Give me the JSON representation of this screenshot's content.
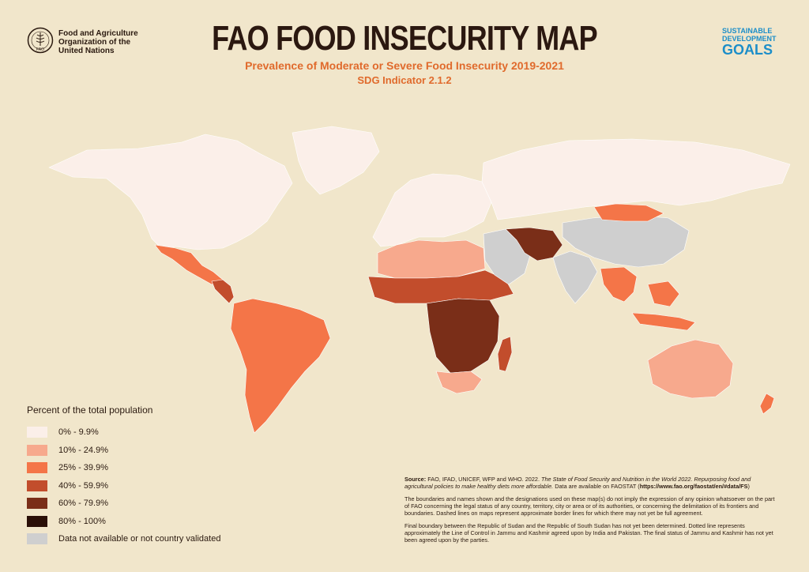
{
  "header": {
    "org_name_line1": "Food and Agriculture",
    "org_name_line2": "Organization of the",
    "org_name_line3": "United Nations",
    "logo_text": "FAO",
    "title": "FAO FOOD INSECURITY MAP",
    "subtitle": "Prevalence of Moderate or Severe Food Insecurity 2019-2021",
    "indicator": "SDG Indicator 2.1.2",
    "sdg_line1": "SUSTAINABLE",
    "sdg_line2": "DEVELOPMENT",
    "sdg_line3": "GOALS"
  },
  "legend": {
    "title": "Percent of the total population",
    "items": [
      {
        "label": "0% -  9.9%",
        "color": "#fbefe9"
      },
      {
        "label": "10% - 24.9%",
        "color": "#f7a98d"
      },
      {
        "label": "25% - 39.9%",
        "color": "#f47548"
      },
      {
        "label": "40% - 59.9%",
        "color": "#c24d2c"
      },
      {
        "label": "60% - 79.9%",
        "color": "#7a2e18"
      },
      {
        "label": "80% - 100%",
        "color": "#2a0f07"
      },
      {
        "label": "Data not available or not country validated",
        "color": "#cfcfcf"
      }
    ]
  },
  "map_regions": [
    {
      "name": "North America",
      "color": "#fbefe9"
    },
    {
      "name": "Greenland",
      "color": "#fbefe9"
    },
    {
      "name": "Mexico",
      "color": "#f47548"
    },
    {
      "name": "Central America",
      "color": "#c24d2c"
    },
    {
      "name": "South America",
      "color": "#f47548"
    },
    {
      "name": "Europe",
      "color": "#fbefe9"
    },
    {
      "name": "Russia",
      "color": "#fbefe9"
    },
    {
      "name": "North Africa",
      "color": "#f7a98d"
    },
    {
      "name": "Sahel",
      "color": "#c24d2c"
    },
    {
      "name": "Central Africa",
      "color": "#7a2e18"
    },
    {
      "name": "Southern Africa",
      "color": "#f7a98d"
    },
    {
      "name": "Madagascar",
      "color": "#c24d2c"
    },
    {
      "name": "Middle East",
      "color": "#cfcfcf"
    },
    {
      "name": "Afghanistan",
      "color": "#7a2e18"
    },
    {
      "name": "India",
      "color": "#cfcfcf"
    },
    {
      "name": "China",
      "color": "#cfcfcf"
    },
    {
      "name": "Mongolia",
      "color": "#f47548"
    },
    {
      "name": "Southeast Asia",
      "color": "#f47548"
    },
    {
      "name": "Australia",
      "color": "#f7a98d"
    },
    {
      "name": "New Zealand",
      "color": "#f47548"
    }
  ],
  "notes": {
    "source_label": "Source:",
    "source_text": "FAO, IFAD, UNICEF, WFP and WHO. 2022.",
    "source_italic": "The State of Food Security and Nutrition in the World 2022. Repurposing food and agricultural policies to make healthy diets more affordable.",
    "source_avail": "Data are available on FAOSTAT (",
    "source_url": "https://www.fao.org/faostat/en/#data/FS",
    "source_close": ")",
    "disclaimer": "The boundaries and names shown and the designations used on these map(s) do not imply the expression of any opinion whatsoever on the part of FAO concerning the legal status of any country, territory, city or area or of its authorities, or concerning the delimitation of its frontiers and boundaries. Dashed lines on maps represent approximate border lines for which there may not yet be full agreement.",
    "boundary": "Final boundary between the Republic of Sudan and the Republic of South Sudan has not yet been determined. Dotted line represents approximately the Line of Control in Jammu and Kashmir agreed upon by India and Pakistan. The final status of Jammu and Kashmir has not yet been agreed upon by the parties."
  }
}
